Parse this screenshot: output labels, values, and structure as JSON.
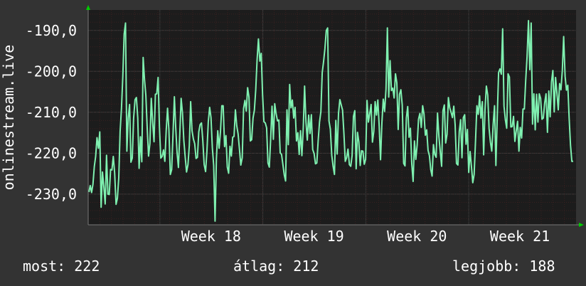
{
  "chart_data": {
    "type": "line",
    "title": "",
    "ylabel": "onlinestream.live",
    "xlabel": "",
    "ylim": [
      -237.5,
      -185.0
    ],
    "yticks": [
      -190.0,
      -200.0,
      -210.0,
      -220.0,
      -230.0
    ],
    "ytick_labels": [
      "-190,0",
      "-200,0",
      "-210,0",
      "-220,0",
      "-230,0"
    ],
    "xlim": [
      0,
      1
    ],
    "xticks": [
      {
        "label": "Week 18",
        "x": 0.147
      },
      {
        "label": "Week 19",
        "x": 0.358
      },
      {
        "label": "Week 20",
        "x": 0.569
      },
      {
        "label": "Week 21",
        "x": 0.78
      }
    ],
    "grid": true,
    "colors": {
      "background": "#333333",
      "plot_background": "#1c1c1c",
      "grid_major": "#4a4a4a",
      "grid_minor": "#3a2020",
      "line": "#7ff0b0",
      "axis_arrow": "#00cc00"
    },
    "series": [
      {
        "values": [
          -229.5,
          -227.9,
          -229.6,
          -227.6,
          -223.3,
          -220.8,
          -216.2,
          -218.8,
          -214.8,
          -233.2,
          -224.6,
          -228.2,
          -232.4,
          -220.5,
          -230.0,
          -230.1,
          -224.0,
          -224.1,
          -220.8,
          -224.8,
          -232.5,
          -231.0,
          -226.0,
          -214.7,
          -209.1,
          -201.2,
          -190.9,
          -188.2,
          -219.5,
          -211.4,
          -208.1,
          -222.2,
          -221.2,
          -211.4,
          -206.9,
          -206.4,
          -211.4,
          -223.7,
          -216.0,
          -222.1,
          -196.6,
          -202.0,
          -205.9,
          -213.9,
          -220.7,
          -217.6,
          -206.6,
          -212.6,
          -217.2,
          -205.6,
          -205.5,
          -201.5,
          -213.6,
          -221.2,
          -220.8,
          -219.2,
          -222.0,
          -214.5,
          -209.0,
          -214.3,
          -225.2,
          -224.0,
          -215.3,
          -206.2,
          -213.8,
          -219.9,
          -223.5,
          -215.4,
          -206.6,
          -210.2,
          -216.9,
          -220.9,
          -224.6,
          -222.8,
          -218.1,
          -207.4,
          -214.5,
          -216.5,
          -217.7,
          -221.3,
          -221.0,
          -214.8,
          -213.0,
          -212.6,
          -217.0,
          -222.8,
          -224.5,
          -219.4,
          -212.3,
          -208.8,
          -211.3,
          -218.7,
          -223.0,
          -236.6,
          -221.4,
          -214.5,
          -218.8,
          -214.8,
          -208.4,
          -208.4,
          -218.4,
          -215.7,
          -223.4,
          -224.9,
          -218.3,
          -220.7,
          -216.1,
          -215.9,
          -209.4,
          -213.3,
          -215.3,
          -219.0,
          -222.9,
          -221.1,
          -209.1,
          -207.1,
          -209.7,
          -204.0,
          -206.3,
          -217.0,
          -216.7,
          -211.4,
          -209.5,
          -204.5,
          -197.2,
          -192.1,
          -197.5,
          -195.6,
          -205.6,
          -212.3,
          -212.6,
          -213.8,
          -222.4,
          -223.4,
          -216.5,
          -208.5,
          -216.6,
          -207.9,
          -210.3,
          -212.1,
          -211.9,
          -219.9,
          -220.3,
          -222.8,
          -225.3,
          -226.8,
          -209.4,
          -217.9,
          -203.2,
          -208.9,
          -207.0,
          -211.4,
          -208.8,
          -217.0,
          -215.0,
          -220.3,
          -214.5,
          -220.6,
          -214.0,
          -203.6,
          -212.3,
          -216.8,
          -210.7,
          -215.2,
          -210.6,
          -219.1,
          -220.1,
          -222.6,
          -222.4,
          -216.9,
          -212.4,
          -209.8,
          -200.3,
          -197.6,
          -194.4,
          -190.0,
          -189.4,
          -212.1,
          -214.1,
          -220.5,
          -223.2,
          -225.2,
          -212.0,
          -220.2,
          -210.3,
          -206.9,
          -208.2,
          -209.5,
          -215.2,
          -222.0,
          -221.1,
          -219.0,
          -222.8,
          -223.2,
          -220.6,
          -211.0,
          -209.6,
          -223.8,
          -214.9,
          -217.3,
          -223.0,
          -219.4,
          -219.5,
          -222.7,
          -221.5,
          -207.1,
          -212.4,
          -210.3,
          -208.1,
          -217.3,
          -214.7,
          -207.4,
          -210.7,
          -207.0,
          -213.4,
          -221.6,
          -212.6,
          -206.8,
          -209.8,
          -204.3,
          -189.4,
          -206.3,
          -197.4,
          -204.7,
          -204.1,
          -206.5,
          -200.6,
          -202.8,
          -214.2,
          -205.6,
          -204.5,
          -208.2,
          -222.5,
          -223.1,
          -211.4,
          -208.6,
          -216.1,
          -213.9,
          -222.6,
          -226.9,
          -217.0,
          -221.5,
          -218.0,
          -211.7,
          -210.3,
          -213.7,
          -208.4,
          -210.4,
          -215.6,
          -214.3,
          -219.3,
          -220.6,
          -224.0,
          -225.6,
          -217.9,
          -220.3,
          -221.0,
          -210.2,
          -216.0,
          -219.7,
          -223.2,
          -209.6,
          -208.2,
          -217.5,
          -215.4,
          -206.4,
          -208.9,
          -210.0,
          -211.3,
          -208.5,
          -213.1,
          -222.5,
          -222.9,
          -214.7,
          -211.8,
          -221.1,
          -211.3,
          -210.6,
          -217.8,
          -214.2,
          -224.7,
          -219.6,
          -223.2,
          -227.2,
          -225.2,
          -216.8,
          -208.4,
          -210.5,
          -206.0,
          -211.4,
          -207.4,
          -220.4,
          -209.3,
          -203.6,
          -205.8,
          -213.9,
          -217.3,
          -219.5,
          -212.9,
          -208.4,
          -223.0,
          -211.1,
          -200.3,
          -199.4,
          -200.7,
          -189.6,
          -208.5,
          -211.8,
          -213.9,
          -200.6,
          -201.4,
          -213.6,
          -213.5,
          -211.0,
          -217.1,
          -214.5,
          -212.2,
          -219.5,
          -213.7,
          -216.3,
          -209.2,
          -209.2,
          -202.3,
          -196.5,
          -187.6,
          -199.6,
          -188.2,
          -212.9,
          -205.5,
          -214.3,
          -205.6,
          -212.4,
          -205.5,
          -206.6,
          -211.7,
          -211.4,
          -207.7,
          -205.5,
          -214.9,
          -204.8,
          -211.1,
          -202.6,
          -199.8,
          -209.9,
          -201.5,
          -205.3,
          -209.4,
          -203.0,
          -204.5,
          -199.8,
          -191.5,
          -201.2,
          -204.6,
          -203.4,
          -211.4,
          -218.0,
          -222.0,
          -222.0
        ]
      }
    ]
  },
  "stats": {
    "current": "most: 222",
    "average": "átlag: 212",
    "max": "legjobb: 188"
  }
}
